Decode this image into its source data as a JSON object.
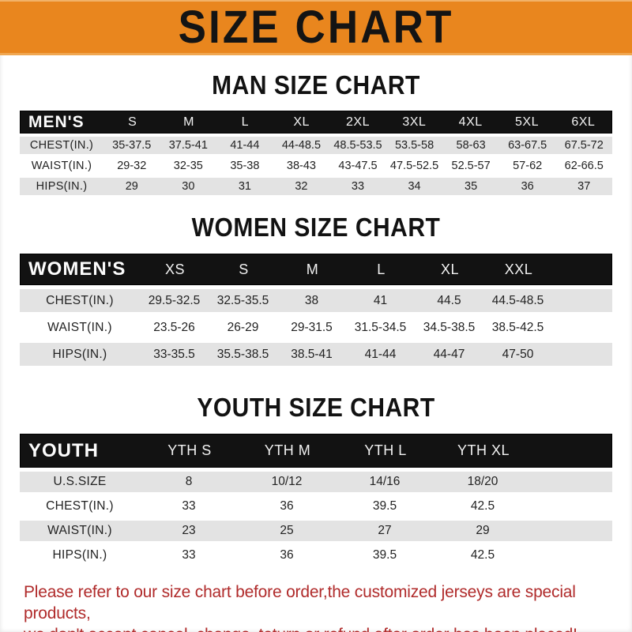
{
  "banner": {
    "title": "SIZE CHART"
  },
  "colors": {
    "banner_orange": "#E9861E",
    "header_bar_black": "#121212",
    "row_stripe_gray": "#E3E3E3",
    "note_red": "#B02B2B"
  },
  "sections": {
    "men": {
      "heading": "MAN SIZE CHART",
      "header_label": "MEN'S",
      "cols": [
        "S",
        "M",
        "L",
        "XL",
        "2XL",
        "3XL",
        "4XL",
        "5XL",
        "6XL"
      ],
      "rows": [
        {
          "label": "CHEST(IN.)",
          "values": [
            "35-37.5",
            "37.5-41",
            "41-44",
            "44-48.5",
            "48.5-53.5",
            "53.5-58",
            "58-63",
            "63-67.5",
            "67.5-72"
          ]
        },
        {
          "label": "WAIST(IN.)",
          "values": [
            "29-32",
            "32-35",
            "35-38",
            "38-43",
            "43-47.5",
            "47.5-52.5",
            "52.5-57",
            "57-62",
            "62-66.5"
          ]
        },
        {
          "label": "HIPS(IN.)",
          "values": [
            "29",
            "30",
            "31",
            "32",
            "33",
            "34",
            "35",
            "36",
            "37"
          ]
        }
      ]
    },
    "women": {
      "heading": "WOMEN SIZE CHART",
      "header_label": "WOMEN'S",
      "cols": [
        "XS",
        "S",
        "M",
        "L",
        "XL",
        "XXL"
      ],
      "rows": [
        {
          "label": "CHEST(IN.)",
          "values": [
            "29.5-32.5",
            "32.5-35.5",
            "38",
            "41",
            "44.5",
            "44.5-48.5"
          ]
        },
        {
          "label": "WAIST(IN.)",
          "values": [
            "23.5-26",
            "26-29",
            "29-31.5",
            "31.5-34.5",
            "34.5-38.5",
            "38.5-42.5"
          ]
        },
        {
          "label": "HIPS(IN.)",
          "values": [
            "33-35.5",
            "35.5-38.5",
            "38.5-41",
            "41-44",
            "44-47",
            "47-50"
          ]
        }
      ]
    },
    "youth": {
      "heading": "YOUTH SIZE CHART",
      "header_label": "YOUTH",
      "cols": [
        "YTH S",
        "YTH M",
        "YTH L",
        "YTH XL"
      ],
      "rows": [
        {
          "label": "U.S.SIZE",
          "values": [
            "8",
            "10/12",
            "14/16",
            "18/20"
          ]
        },
        {
          "label": "CHEST(IN.)",
          "values": [
            "33",
            "36",
            "39.5",
            "42.5"
          ]
        },
        {
          "label": "WAIST(IN.)",
          "values": [
            "23",
            "25",
            "27",
            "29"
          ]
        },
        {
          "label": "HIPS(IN.)",
          "values": [
            "33",
            "36",
            "39.5",
            "42.5"
          ]
        }
      ]
    }
  },
  "footer": {
    "line1": "Please refer to our size chart before order,the customized jerseys are special products,",
    "line2": "we don't accept cancel, change, teturn or refund after order has been placed!"
  }
}
